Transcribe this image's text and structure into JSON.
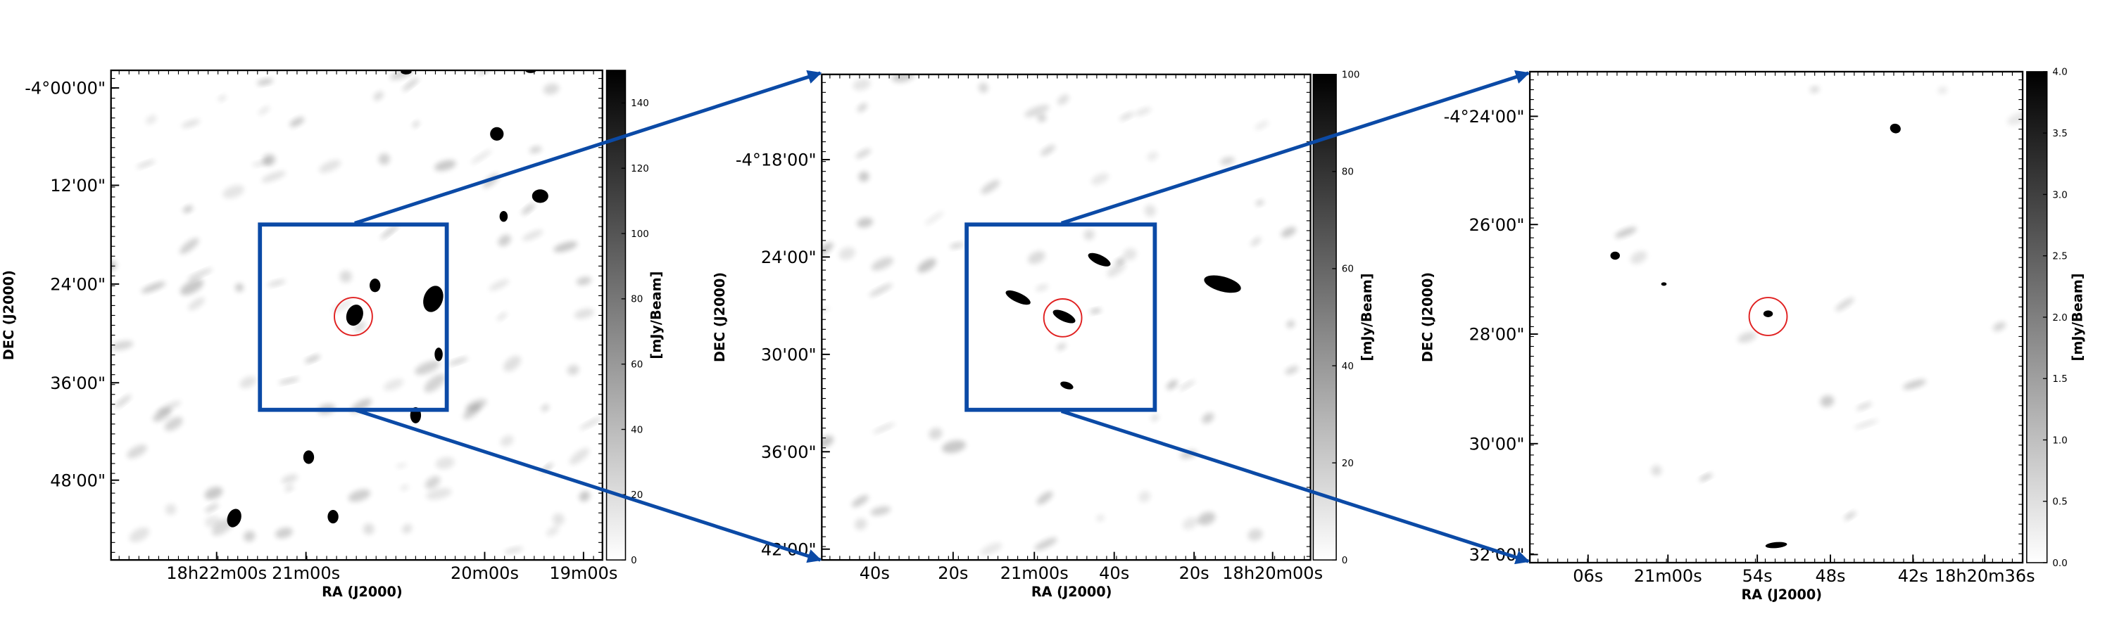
{
  "panels": [
    {
      "x_label": "RA (J2000)",
      "y_label": "DEC (J2000)",
      "xticks": [
        "18h22m00s",
        "21m00s",
        "20m00s",
        "19m00s"
      ],
      "yticks": [
        "-4°00'00\"",
        "12'00\"",
        "24'00\"",
        "36'00\"",
        "48'00\""
      ],
      "colorbar": {
        "label": "[mJy/Beam]",
        "lim": [
          0,
          150
        ],
        "ticks": [
          0,
          20,
          40,
          60,
          80,
          100,
          120,
          140
        ]
      }
    },
    {
      "x_label": "RA (J2000)",
      "y_label": "DEC (J2000)",
      "xticks": [
        "40s",
        "20s",
        "21m00s",
        "40s",
        "20s",
        "18h20m00s"
      ],
      "yticks": [
        "-4°18'00\"",
        "24'00\"",
        "30'00\"",
        "36'00\"",
        "42'00\""
      ],
      "colorbar": {
        "label": "[mJy/Beam]",
        "lim": [
          0,
          100
        ],
        "ticks": [
          0,
          20,
          40,
          60,
          80,
          100
        ]
      }
    },
    {
      "x_label": "RA (J2000)",
      "y_label": "DEC (J2000)",
      "xticks": [
        "06s",
        "21m00s",
        "54s",
        "48s",
        "42s",
        "18h20m36s"
      ],
      "yticks": [
        "-4°24'00\"",
        "26'00\"",
        "28'00\"",
        "30'00\"",
        "32'00\""
      ],
      "colorbar": {
        "label": "[mJy/Beam]",
        "lim": [
          0,
          4
        ],
        "ticks": [
          {
            "value": 0,
            "label": "0.0"
          },
          {
            "value": 0.5,
            "label": "0.5"
          },
          {
            "value": 1,
            "label": "1.0"
          },
          {
            "value": 1.5,
            "label": "1.5"
          },
          {
            "value": 2,
            "label": "2.0"
          },
          {
            "value": 2.5,
            "label": "2.5"
          },
          {
            "value": 3,
            "label": "3.0"
          },
          {
            "value": 3.5,
            "label": "3.5"
          },
          {
            "value": 4,
            "label": "4.0"
          }
        ]
      }
    }
  ]
}
